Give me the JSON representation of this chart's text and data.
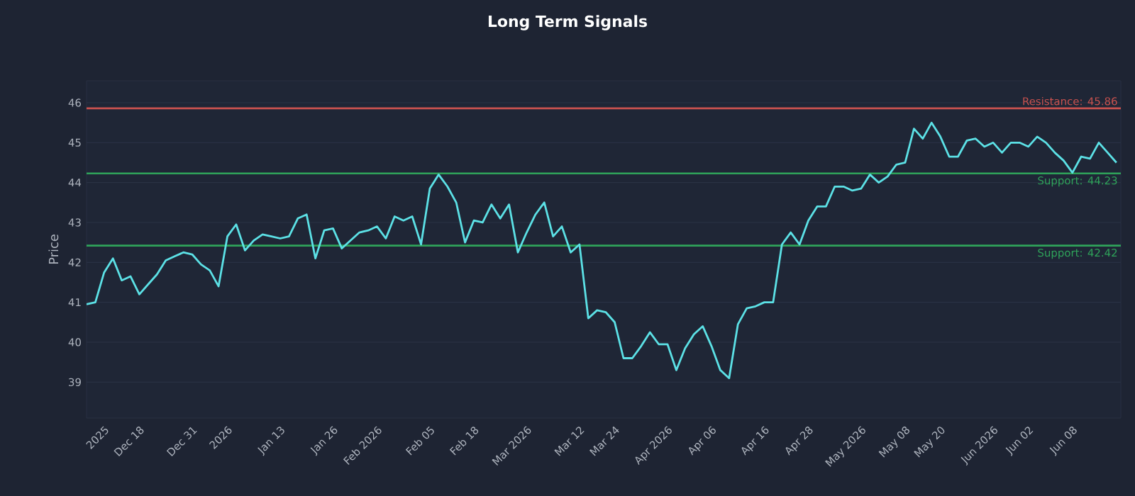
{
  "chart_data": {
    "type": "line",
    "title": "Long Term Signals",
    "ylabel": "Price",
    "categories": [
      null,
      null,
      "2025",
      null,
      null,
      null,
      "Dec 18",
      null,
      null,
      null,
      null,
      null,
      "Dec 31",
      null,
      null,
      null,
      "2026",
      null,
      null,
      null,
      null,
      null,
      "Jan 13",
      null,
      null,
      null,
      null,
      null,
      "Jan 26",
      null,
      null,
      null,
      null,
      "Feb 2026",
      null,
      null,
      null,
      null,
      null,
      "Feb 05",
      null,
      null,
      null,
      null,
      "Feb 18",
      null,
      null,
      null,
      null,
      null,
      "Mar 2026",
      null,
      null,
      null,
      null,
      null,
      "Mar 12",
      null,
      null,
      null,
      "Mar 24",
      null,
      null,
      null,
      null,
      null,
      "Apr 2026",
      null,
      null,
      null,
      null,
      "Apr 06",
      null,
      null,
      null,
      null,
      null,
      "Apr 16",
      null,
      null,
      null,
      null,
      "Apr 28",
      null,
      null,
      null,
      null,
      null,
      "May 2026",
      null,
      null,
      null,
      null,
      "May 08",
      null,
      null,
      null,
      "May 20",
      null,
      null,
      null,
      null,
      null,
      "Jun 2026",
      null,
      null,
      null,
      "Jun 02",
      null,
      null,
      null,
      null,
      "Jun 08",
      null,
      null,
      null,
      null,
      null
    ],
    "series": [
      {
        "color": "#5ce1e6",
        "values": [
          40.95,
          41.0,
          41.75,
          42.1,
          41.55,
          41.65,
          41.2,
          41.45,
          41.7,
          42.05,
          42.15,
          42.25,
          42.2,
          41.95,
          41.8,
          41.4,
          42.65,
          42.95,
          42.3,
          42.55,
          42.7,
          42.65,
          42.6,
          42.65,
          43.1,
          43.2,
          42.1,
          42.8,
          42.85,
          42.35,
          42.55,
          42.75,
          42.8,
          42.9,
          42.6,
          43.15,
          43.05,
          43.15,
          42.45,
          43.85,
          44.2,
          43.9,
          43.5,
          42.5,
          43.05,
          43.0,
          43.45,
          43.1,
          43.45,
          42.25,
          42.75,
          43.2,
          43.5,
          42.65,
          42.9,
          42.25,
          42.45,
          40.6,
          40.8,
          40.75,
          40.5,
          39.6,
          39.6,
          39.9,
          40.25,
          39.95,
          39.95,
          39.3,
          39.85,
          40.2,
          40.4,
          39.9,
          39.3,
          39.1,
          40.45,
          40.85,
          40.9,
          41.0,
          41.0,
          42.45,
          42.75,
          42.45,
          43.05,
          43.4,
          43.4,
          43.9,
          43.9,
          43.8,
          43.85,
          44.2,
          44.0,
          44.15,
          44.45,
          44.5,
          45.35,
          45.1,
          45.5,
          45.15,
          44.65,
          44.65,
          45.05,
          45.1,
          44.9,
          45.0,
          44.75,
          45.0,
          45.0,
          44.9,
          45.15,
          45.0,
          44.75,
          44.55,
          44.25,
          44.65,
          44.6,
          45.0,
          44.75,
          44.5
        ]
      }
    ],
    "ylim": [
      38.1,
      46.55
    ],
    "yticks": [
      39,
      40,
      41,
      42,
      43,
      44,
      45,
      46
    ],
    "ref_lines": [
      {
        "axis": "y",
        "value": 45.86,
        "label": "Resistance: 45.86",
        "color": "#c9524f"
      },
      {
        "axis": "y",
        "value": 44.23,
        "label": "Support: 44.23",
        "color": "#2fa35a"
      },
      {
        "axis": "y",
        "value": 42.42,
        "label": "Support: 42.42",
        "color": "#2fa35a"
      }
    ],
    "grid": "y",
    "marker": "none",
    "line_style": "solid"
  }
}
